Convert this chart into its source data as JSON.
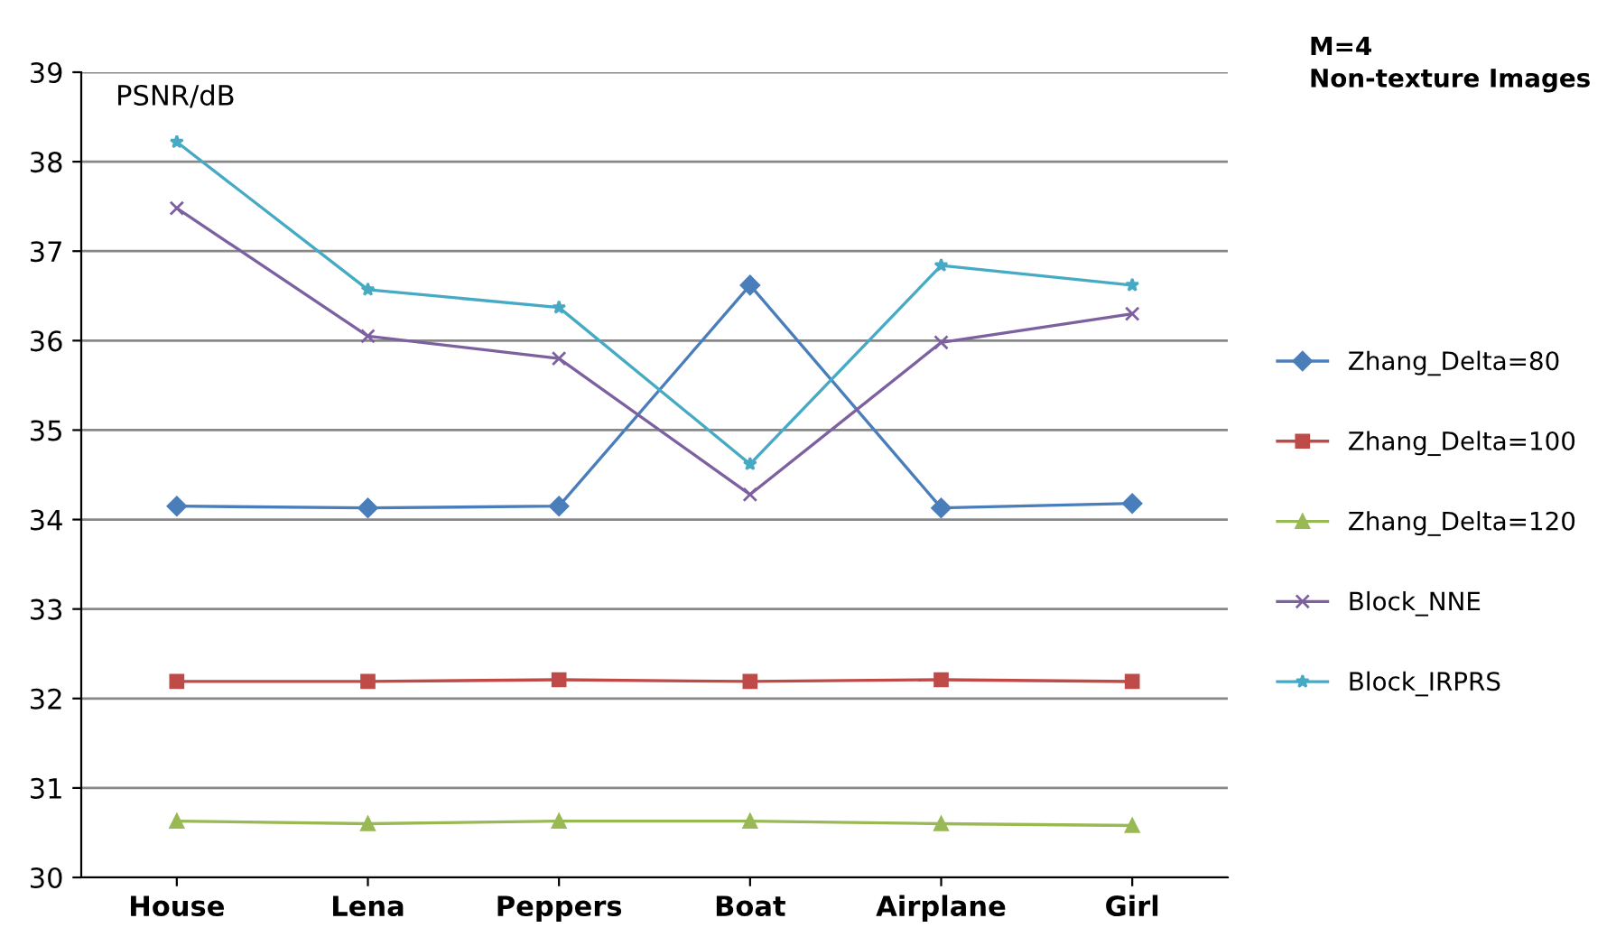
{
  "chart_data": {
    "type": "line",
    "title": "M=4\nNon-texture Images",
    "ylabel": "PSNR/dB",
    "categories": [
      "House",
      "Lena",
      "Peppers",
      "Boat",
      "Airplane",
      "Girl"
    ],
    "series": [
      {
        "name": "Zhang_Delta=80",
        "color": "#4a7ebb",
        "marker": "diamond",
        "values": [
          34.15,
          34.13,
          34.15,
          36.62,
          34.13,
          34.18
        ]
      },
      {
        "name": "Zhang_Delta=100",
        "color": "#be4b48",
        "marker": "square",
        "values": [
          32.19,
          32.19,
          32.21,
          32.19,
          32.21,
          32.19
        ]
      },
      {
        "name": "Zhang_Delta=120",
        "color": "#98b954",
        "marker": "triangle",
        "values": [
          30.63,
          30.6,
          30.63,
          30.63,
          30.6,
          30.58
        ]
      },
      {
        "name": "Block_NNE",
        "color": "#7d60a0",
        "marker": "cross",
        "values": [
          37.48,
          36.05,
          35.8,
          34.28,
          35.98,
          36.3
        ]
      },
      {
        "name": "Block_IRPRS",
        "color": "#46aac5",
        "marker": "star",
        "values": [
          38.22,
          36.57,
          36.37,
          34.62,
          36.84,
          36.62
        ]
      }
    ],
    "ylim": [
      30,
      39
    ],
    "yticks": [
      30,
      31,
      32,
      33,
      34,
      35,
      36,
      37,
      38,
      39
    ],
    "grid": "y",
    "legend": "right",
    "line_style": "solid"
  }
}
